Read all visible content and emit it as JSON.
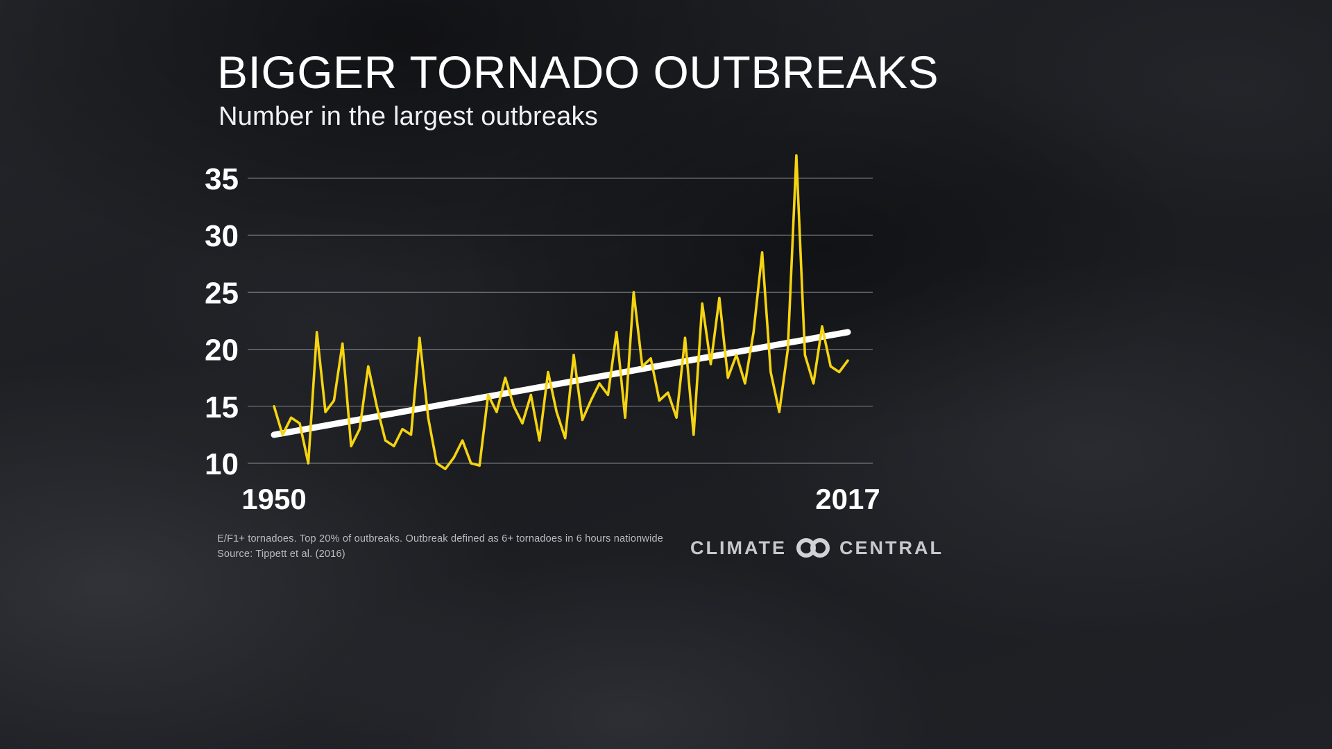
{
  "page": {
    "title": "BIGGER TORNADO OUTBREAKS",
    "subtitle": "Number in the largest outbreaks",
    "footnote_line1": "E/F1+ tornadoes. Top 20% of outbreaks. Outbreak defined as 6+ tornadoes in 6 hours nationwide",
    "footnote_line2": "Source: Tippett et al. (2016)",
    "logo": {
      "left": "CLIMATE",
      "right": "CENTRAL",
      "icon": "interlocking-rings-icon"
    }
  },
  "colors": {
    "line": "#F5D410",
    "trend": "#FFFFFF",
    "grid": "#C8CDD4",
    "text": "#FFFFFF",
    "footnote": "#B8BCC2",
    "logo": "#C6CACF",
    "background": "#1A1C20"
  },
  "chart_data": {
    "type": "line",
    "title": "BIGGER TORNADO OUTBREAKS",
    "subtitle": "Number in the largest outbreaks",
    "series_name": "Number of tornadoes in the largest outbreaks",
    "x_start": 1950,
    "x_end": 2017,
    "x": [
      1950,
      1951,
      1952,
      1953,
      1954,
      1955,
      1956,
      1957,
      1958,
      1959,
      1960,
      1961,
      1962,
      1963,
      1964,
      1965,
      1966,
      1967,
      1968,
      1969,
      1970,
      1971,
      1972,
      1973,
      1974,
      1975,
      1976,
      1977,
      1978,
      1979,
      1980,
      1981,
      1982,
      1983,
      1984,
      1985,
      1986,
      1987,
      1988,
      1989,
      1990,
      1991,
      1992,
      1993,
      1994,
      1995,
      1996,
      1997,
      1998,
      1999,
      2000,
      2001,
      2002,
      2003,
      2004,
      2005,
      2006,
      2007,
      2008,
      2009,
      2010,
      2011,
      2012,
      2013,
      2014,
      2015,
      2016,
      2017
    ],
    "values": [
      15,
      12.5,
      14,
      13.5,
      10,
      21.5,
      14.5,
      15.5,
      20.5,
      11.5,
      13,
      18.5,
      15,
      12,
      11.5,
      13,
      12.5,
      21,
      14,
      10,
      9.5,
      10.5,
      12,
      10,
      9.8,
      16,
      14.5,
      17.5,
      15,
      13.5,
      16,
      12,
      18,
      14.5,
      12.2,
      19.5,
      13.8,
      15.5,
      17,
      16,
      21.5,
      14,
      25,
      18.5,
      19.2,
      15.5,
      16.2,
      14,
      21,
      12.5,
      24,
      18.7,
      24.5,
      17.5,
      19.5,
      17,
      21.5,
      28.5,
      18,
      14.5,
      20,
      37,
      19.5,
      17,
      22,
      18.5,
      18,
      19
    ],
    "trend_line": {
      "x": [
        1950,
        2017
      ],
      "y": [
        12.5,
        21.5
      ]
    },
    "yticks": [
      10,
      15,
      20,
      25,
      30,
      35
    ],
    "xtick_labels": [
      "1950",
      "2017"
    ],
    "ylim": [
      9,
      37.5
    ],
    "grid": true,
    "legend": "none"
  }
}
